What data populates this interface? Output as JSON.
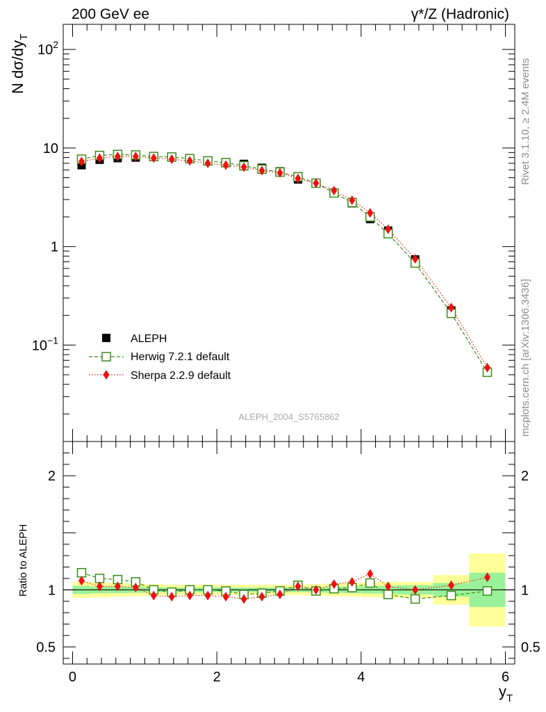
{
  "header": {
    "left": "200 GeV ee",
    "right": "γ*/Z (Hadronic)"
  },
  "watermark": "ALEPH_2004_S5765862",
  "side_labels": {
    "rivet": "Rivet 3.1.10, ≥ 2.4M events",
    "mcplots": "mcplots.cern.ch [arXiv:1306.3436]"
  },
  "colors": {
    "data": "#000000",
    "herwig": "#3a8a1a",
    "sherpa": "#ee1111",
    "band_yellow": "#ffff99",
    "band_green": "#99f299",
    "side_text": "#8c8c8c"
  },
  "legend": [
    {
      "name": "ALEPH",
      "marker": "square-filled"
    },
    {
      "name": "Herwig 7.2.1 default",
      "marker": "square-open"
    },
    {
      "name": "Sherpa 2.2.9 default",
      "marker": "diamond"
    }
  ],
  "chart_data": [
    {
      "type": "scatter",
      "panel": "main",
      "ylabel": "N dσ/dy",
      "ylabel_sub": "T",
      "yscale": "log",
      "ylim": [
        0.0105,
        180
      ],
      "y_ticks": [
        {
          "value": 0.1,
          "base": "10",
          "exp": "−1"
        },
        {
          "value": 1,
          "base": "1",
          "exp": ""
        },
        {
          "value": 10,
          "base": "10",
          "exp": ""
        },
        {
          "value": 100,
          "base": "10",
          "exp": "2"
        }
      ],
      "xlim": [
        -0.13,
        6.13
      ],
      "x": [
        0.125,
        0.375,
        0.625,
        0.875,
        1.125,
        1.375,
        1.625,
        1.875,
        2.125,
        2.375,
        2.625,
        2.875,
        3.125,
        3.375,
        3.625,
        3.875,
        4.125,
        4.375,
        4.75,
        5.25,
        5.75
      ],
      "series": [
        {
          "name": "ALEPH",
          "values": [
            6.7,
            7.6,
            7.9,
            8.0,
            8.2,
            8.1,
            7.8,
            7.4,
            7.1,
            6.9,
            6.3,
            5.8,
            4.8,
            4.4,
            3.5,
            2.75,
            1.9,
            1.45,
            0.74,
            0.225,
            0.053
          ]
        },
        {
          "name": "Herwig 7.2.1 default",
          "values": [
            7.7,
            8.4,
            8.6,
            8.5,
            8.2,
            8.1,
            7.8,
            7.4,
            7.1,
            6.6,
            6.1,
            5.7,
            5.1,
            4.4,
            3.5,
            2.8,
            2.0,
            1.35,
            0.68,
            0.21,
            0.053
          ]
        },
        {
          "name": "Sherpa 2.2.9 default",
          "values": [
            7.3,
            7.9,
            8.2,
            8.2,
            7.9,
            7.7,
            7.4,
            7.0,
            6.7,
            6.4,
            5.9,
            5.6,
            4.9,
            4.4,
            3.7,
            2.95,
            2.2,
            1.5,
            0.75,
            0.24,
            0.059
          ]
        }
      ]
    },
    {
      "type": "scatter",
      "panel": "ratio",
      "ylabel": "Ratio to ALEPH",
      "xlabel": "y",
      "xlabel_sub": "T",
      "ylim": [
        0.35,
        2.3
      ],
      "y_ticks": [
        {
          "value": 0.5,
          "label": "0.5"
        },
        {
          "value": 1,
          "label": "1"
        },
        {
          "value": 2,
          "label": "2"
        }
      ],
      "xlim": [
        -0.13,
        6.13
      ],
      "x_ticks": [
        0,
        2,
        4,
        6
      ],
      "x_tick_labels": [
        "0",
        "2",
        "4",
        "6"
      ],
      "x": [
        0.125,
        0.375,
        0.625,
        0.875,
        1.125,
        1.375,
        1.625,
        1.875,
        2.125,
        2.375,
        2.625,
        2.875,
        3.125,
        3.375,
        3.625,
        3.875,
        4.125,
        4.375,
        4.75,
        5.25,
        5.75
      ],
      "bins": [
        [
          0,
          0.25
        ],
        [
          0.25,
          0.5
        ],
        [
          0.5,
          0.75
        ],
        [
          0.75,
          1.0
        ],
        [
          1.0,
          1.25
        ],
        [
          1.25,
          1.5
        ],
        [
          1.5,
          1.75
        ],
        [
          1.75,
          2.0
        ],
        [
          2.0,
          2.25
        ],
        [
          2.25,
          2.5
        ],
        [
          2.5,
          2.75
        ],
        [
          2.75,
          3.0
        ],
        [
          3.0,
          3.25
        ],
        [
          3.25,
          3.5
        ],
        [
          3.5,
          3.75
        ],
        [
          3.75,
          4.0
        ],
        [
          4.0,
          4.25
        ],
        [
          4.25,
          4.5
        ],
        [
          4.5,
          5.0
        ],
        [
          5.0,
          5.5
        ],
        [
          5.5,
          6.0
        ]
      ],
      "band_total": [
        0.07,
        0.065,
        0.06,
        0.055,
        0.05,
        0.045,
        0.045,
        0.045,
        0.045,
        0.045,
        0.045,
        0.045,
        0.045,
        0.05,
        0.055,
        0.06,
        0.065,
        0.07,
        0.07,
        0.13,
        0.32
      ],
      "band_stat": [
        0.035,
        0.03,
        0.028,
        0.026,
        0.022,
        0.02,
        0.02,
        0.02,
        0.02,
        0.02,
        0.02,
        0.02,
        0.02,
        0.022,
        0.025,
        0.028,
        0.032,
        0.035,
        0.04,
        0.06,
        0.15
      ],
      "series": [
        {
          "name": "Herwig 7.2.1 default",
          "values": [
            1.15,
            1.1,
            1.09,
            1.07,
            1.0,
            0.98,
            1.0,
            1.0,
            0.99,
            0.96,
            0.97,
            0.99,
            1.04,
            0.99,
            1.01,
            1.02,
            1.06,
            0.96,
            0.92,
            0.95,
            0.99
          ]
        },
        {
          "name": "Sherpa 2.2.9 default",
          "values": [
            1.08,
            1.03,
            1.03,
            1.02,
            0.95,
            0.94,
            0.95,
            0.95,
            0.94,
            0.92,
            0.94,
            0.96,
            1.03,
            1.0,
            1.05,
            1.07,
            1.14,
            1.03,
            1.0,
            1.04,
            1.11
          ]
        }
      ]
    }
  ]
}
